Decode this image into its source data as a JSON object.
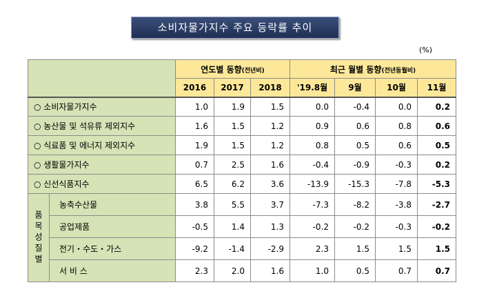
{
  "header": {
    "title": "소비자물가지수 주요 등락률 추이",
    "unit": "(%)"
  },
  "table": {
    "col_groups": [
      {
        "label": "연도별 동향",
        "note": "(전년비)"
      },
      {
        "label": "최근 월별 동향",
        "note": "(전년동월비)"
      }
    ],
    "columns": [
      "2016",
      "2017",
      "2018",
      "'19.8월",
      "9월",
      "10월",
      "11월"
    ],
    "rows": [
      {
        "label": "○ 소비자물가지수",
        "values": [
          "1.0",
          "1.9",
          "1.5",
          "0.0",
          "-0.4",
          "0.0",
          "0.2"
        ]
      },
      {
        "label": "○ 농산물 및 석유류 제외지수",
        "values": [
          "1.6",
          "1.5",
          "1.2",
          "0.9",
          "0.6",
          "0.8",
          "0.6"
        ]
      },
      {
        "label": "○ 식료품 및 에너지 제외지수",
        "values": [
          "1.9",
          "1.5",
          "1.2",
          "0.8",
          "0.5",
          "0.6",
          "0.5"
        ]
      },
      {
        "label": "○ 생활물가지수",
        "values": [
          "0.7",
          "2.5",
          "1.6",
          "-0.4",
          "-0.9",
          "-0.3",
          "0.2"
        ]
      },
      {
        "label": "○ 신선식품지수",
        "values": [
          "6.5",
          "6.2",
          "3.6",
          "-13.9",
          "-15.3",
          "-7.8",
          "-5.3"
        ]
      }
    ],
    "group": {
      "label": "품목성질별",
      "rows": [
        {
          "label": "농축수산물",
          "values": [
            "3.8",
            "5.5",
            "3.7",
            "-7.3",
            "-8.2",
            "-3.8",
            "-2.7"
          ]
        },
        {
          "label": "공업제품",
          "values": [
            "-0.5",
            "1.4",
            "1.3",
            "-0.2",
            "-0.2",
            "-0.3",
            "-0.2"
          ]
        },
        {
          "label": "전기・수도・가스",
          "values": [
            "-9.2",
            "-1.4",
            "-2.9",
            "2.3",
            "1.5",
            "1.5",
            "1.5"
          ]
        },
        {
          "label": "서 비 스",
          "values": [
            "2.3",
            "2.0",
            "1.6",
            "1.0",
            "0.5",
            "0.7",
            "0.7"
          ]
        }
      ]
    }
  }
}
